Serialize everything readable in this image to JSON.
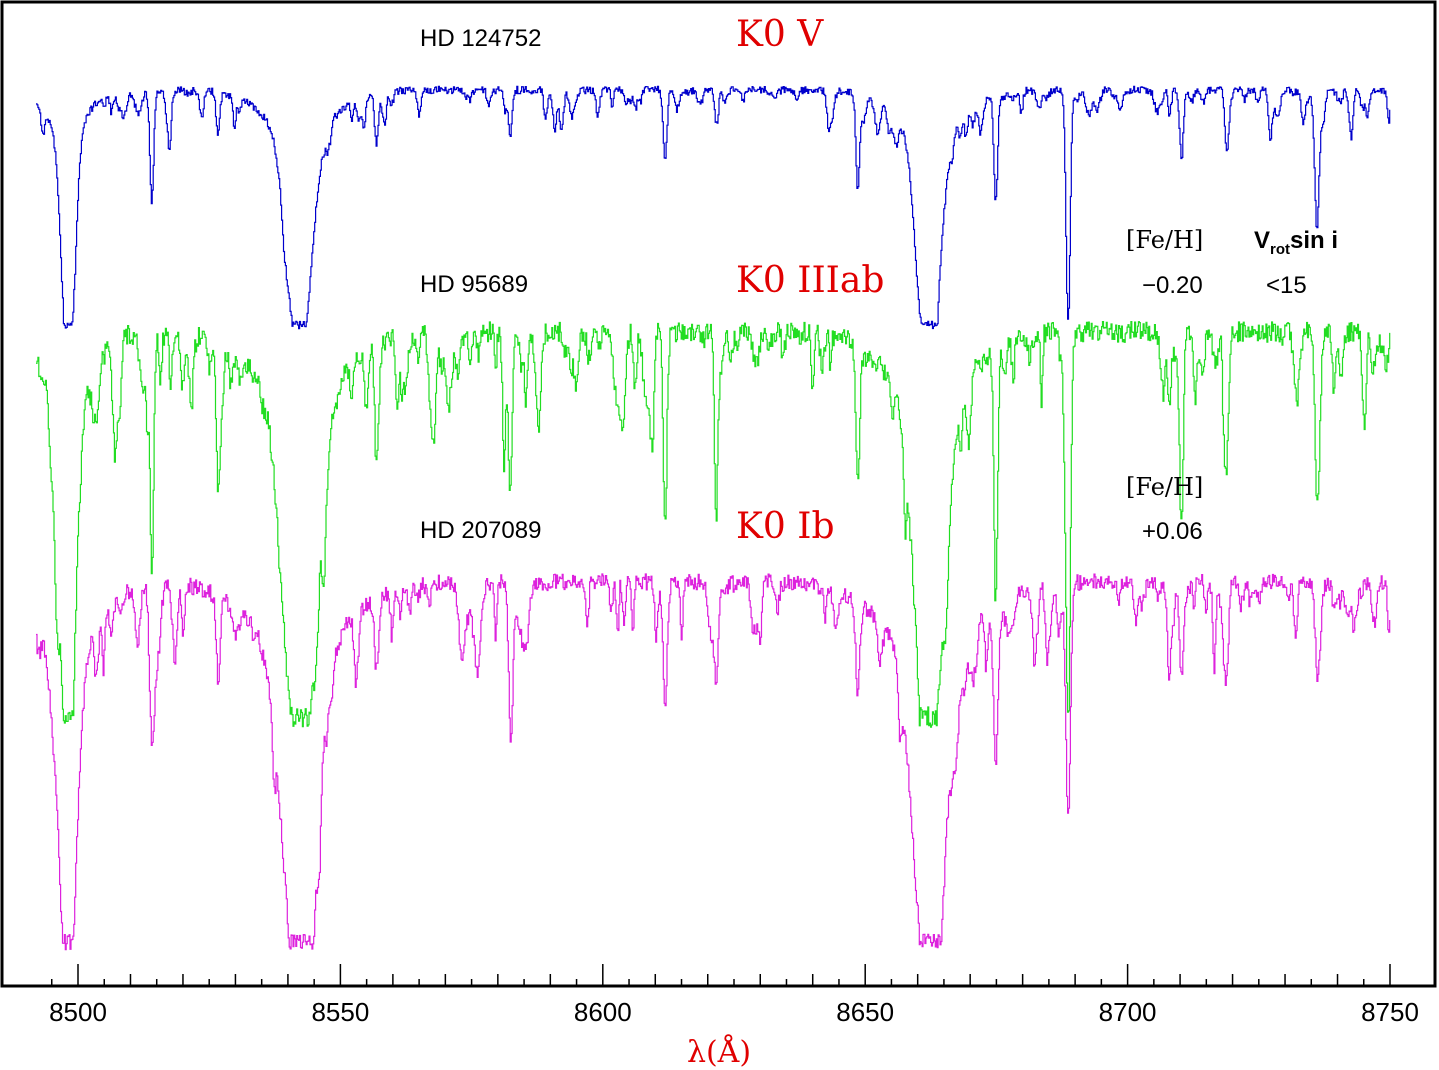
{
  "chart_data": {
    "type": "line",
    "title": "",
    "xlabel": "λ(Å)",
    "ylabel": "",
    "xlim": [
      8492,
      8750
    ],
    "x_ticks": [
      "8500",
      "8550",
      "8600",
      "8650",
      "8700",
      "8750"
    ],
    "grid": false,
    "legend": "none",
    "series": [
      {
        "star": "HD 124752",
        "spectral_type": "K0 V",
        "color": "#0000cc",
        "fe_h_label": "[Fe/H]",
        "fe_h": "−0.20",
        "vrot_label_main": "V",
        "vrot_label_sub": "rot",
        "vrot_label_rest": "sin i",
        "vrot": "<15",
        "continuum": 1.0,
        "noise": 0.035,
        "lines": [
          {
            "x": 8498.0,
            "depth": 1.0,
            "width": 1.2
          },
          {
            "x": 8542.1,
            "depth": 1.0,
            "width": 2.2
          },
          {
            "x": 8662.1,
            "depth": 1.0,
            "width": 2.0
          },
          {
            "x": 8514.0,
            "depth": 0.45,
            "width": 0.35
          },
          {
            "x": 8526.6,
            "depth": 0.18,
            "width": 0.35
          },
          {
            "x": 8556.8,
            "depth": 0.22,
            "width": 0.35
          },
          {
            "x": 8582.3,
            "depth": 0.2,
            "width": 0.35
          },
          {
            "x": 8611.8,
            "depth": 0.3,
            "width": 0.35
          },
          {
            "x": 8621.6,
            "depth": 0.15,
            "width": 0.35
          },
          {
            "x": 8648.5,
            "depth": 0.4,
            "width": 0.35
          },
          {
            "x": 8674.8,
            "depth": 0.45,
            "width": 0.35
          },
          {
            "x": 8688.6,
            "depth": 0.95,
            "width": 0.4
          },
          {
            "x": 8710.2,
            "depth": 0.3,
            "width": 0.35
          },
          {
            "x": 8718.8,
            "depth": 0.25,
            "width": 0.35
          },
          {
            "x": 8727.1,
            "depth": 0.2,
            "width": 0.35
          },
          {
            "x": 8736.0,
            "depth": 0.55,
            "width": 0.4
          },
          {
            "x": 8742.5,
            "depth": 0.2,
            "width": 0.35
          }
        ]
      },
      {
        "star": "HD 95689",
        "spectral_type": "K0 IIIab",
        "color": "#22dd22",
        "fe_h_label": "",
        "fe_h": "",
        "vrot": "",
        "continuum": 1.0,
        "noise": 0.06,
        "lines": [
          {
            "x": 8498.0,
            "depth": 1.0,
            "width": 1.4
          },
          {
            "x": 8542.1,
            "depth": 1.0,
            "width": 2.8
          },
          {
            "x": 8662.1,
            "depth": 1.0,
            "width": 2.5
          },
          {
            "x": 8514.0,
            "depth": 0.65,
            "width": 0.35
          },
          {
            "x": 8526.6,
            "depth": 0.3,
            "width": 0.35
          },
          {
            "x": 8556.8,
            "depth": 0.3,
            "width": 0.35
          },
          {
            "x": 8582.3,
            "depth": 0.42,
            "width": 0.35
          },
          {
            "x": 8611.8,
            "depth": 0.5,
            "width": 0.35
          },
          {
            "x": 8621.6,
            "depth": 0.35,
            "width": 0.35
          },
          {
            "x": 8648.5,
            "depth": 0.35,
            "width": 0.35
          },
          {
            "x": 8674.8,
            "depth": 0.65,
            "width": 0.35
          },
          {
            "x": 8688.6,
            "depth": 0.95,
            "width": 0.4
          },
          {
            "x": 8710.2,
            "depth": 0.3,
            "width": 0.35
          },
          {
            "x": 8718.8,
            "depth": 0.35,
            "width": 0.35
          },
          {
            "x": 8736.0,
            "depth": 0.4,
            "width": 0.4
          },
          {
            "x": 8745.0,
            "depth": 0.25,
            "width": 0.35
          }
        ]
      },
      {
        "star": "HD 207089",
        "spectral_type": "K0 Ib",
        "color": "#dd22dd",
        "fe_h_label": "[Fe/H]",
        "fe_h": "+0.06",
        "vrot": "",
        "continuum": 1.0,
        "noise": 0.05,
        "lines": [
          {
            "x": 8498.0,
            "depth": 1.0,
            "width": 1.6
          },
          {
            "x": 8542.1,
            "depth": 1.0,
            "width": 3.0
          },
          {
            "x": 8662.1,
            "depth": 1.0,
            "width": 2.8
          },
          {
            "x": 8514.0,
            "depth": 0.4,
            "width": 0.45
          },
          {
            "x": 8526.6,
            "depth": 0.2,
            "width": 0.4
          },
          {
            "x": 8556.8,
            "depth": 0.2,
            "width": 0.4
          },
          {
            "x": 8582.3,
            "depth": 0.3,
            "width": 0.4
          },
          {
            "x": 8611.8,
            "depth": 0.35,
            "width": 0.4
          },
          {
            "x": 8621.6,
            "depth": 0.25,
            "width": 0.4
          },
          {
            "x": 8648.5,
            "depth": 0.25,
            "width": 0.4
          },
          {
            "x": 8674.8,
            "depth": 0.45,
            "width": 0.45
          },
          {
            "x": 8688.6,
            "depth": 0.65,
            "width": 0.45
          },
          {
            "x": 8710.2,
            "depth": 0.25,
            "width": 0.4
          },
          {
            "x": 8718.8,
            "depth": 0.2,
            "width": 0.4
          },
          {
            "x": 8736.0,
            "depth": 0.2,
            "width": 0.4
          }
        ]
      }
    ]
  }
}
